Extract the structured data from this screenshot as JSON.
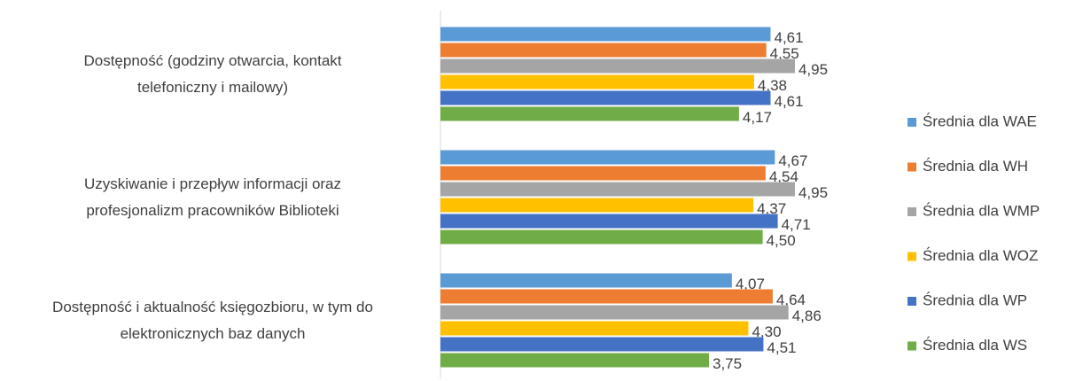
{
  "chart_data": {
    "type": "bar",
    "orientation": "horizontal",
    "categories": [
      [
        "Dostępność (godziny otwarcia, kontakt",
        "telefoniczny i mailowy)"
      ],
      [
        "Uzyskiwanie i przepływ informacji oraz",
        "profesjonalizm pracowników Biblioteki"
      ],
      [
        "Dostępność i aktualność księgozbioru, w tym do",
        "elektronicznych baz danych"
      ]
    ],
    "series": [
      {
        "name": "Średnia dla WAE",
        "color": "#5b9bd5",
        "values": [
          4.61,
          4.67,
          4.07
        ],
        "value_labels": [
          "4,61",
          "4,67",
          "4,07"
        ]
      },
      {
        "name": "Średnia dla WH",
        "color": "#ed7d31",
        "values": [
          4.55,
          4.54,
          4.64
        ],
        "value_labels": [
          "4,55",
          "4,54",
          "4,64"
        ]
      },
      {
        "name": "Średnia dla WMP",
        "color": "#a5a5a5",
        "values": [
          4.95,
          4.95,
          4.86
        ],
        "value_labels": [
          "4,95",
          "4,95",
          "4,86"
        ]
      },
      {
        "name": "Średnia dla WOZ",
        "color": "#ffc000",
        "values": [
          4.38,
          4.37,
          4.3
        ],
        "value_labels": [
          "4,38",
          "4,37",
          "4,30"
        ]
      },
      {
        "name": "Średnia dla WP",
        "color": "#4472c4",
        "values": [
          4.61,
          4.71,
          4.51
        ],
        "value_labels": [
          "4,61",
          "4,71",
          "4,51"
        ]
      },
      {
        "name": "Średnia dla WS",
        "color": "#70ad47",
        "values": [
          4.17,
          4.5,
          3.75
        ],
        "value_labels": [
          "4,17",
          "4,50",
          "3,75"
        ]
      }
    ],
    "xlim": [
      0,
      5
    ],
    "legend": "right"
  }
}
